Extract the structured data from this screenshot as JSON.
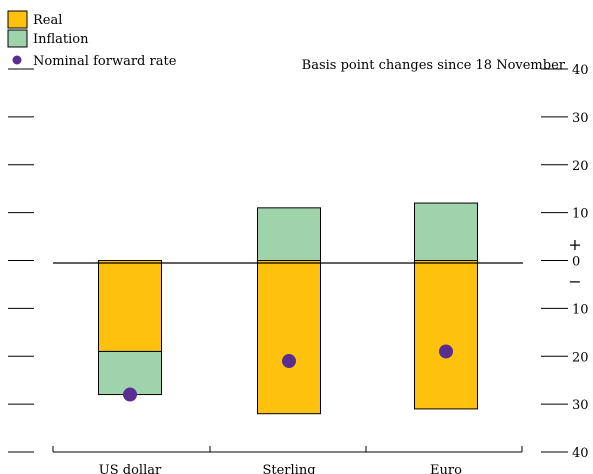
{
  "chart_data": {
    "type": "bar",
    "stacked": true,
    "title": "",
    "note": "Basis point changes since 18 November",
    "categories": [
      "US dollar",
      "Sterling",
      "Euro"
    ],
    "series": [
      {
        "name": "Real",
        "color": "#FEC20E",
        "values": [
          -19,
          -32,
          -31
        ]
      },
      {
        "name": "Inflation",
        "color": "#9ED3AC",
        "values": [
          -9,
          11,
          12
        ]
      }
    ],
    "points": {
      "name": "Nominal forward rate",
      "color": "#5A2D91",
      "values": [
        -28,
        -21,
        -19
      ]
    },
    "ylim": [
      -40,
      40
    ],
    "yticks": [
      40,
      30,
      20,
      10,
      0,
      10,
      20,
      30,
      40
    ],
    "sign_labels": {
      "plus": "+",
      "minus": "−"
    },
    "legend_position": "top-left",
    "title_color": "#22B24C"
  }
}
